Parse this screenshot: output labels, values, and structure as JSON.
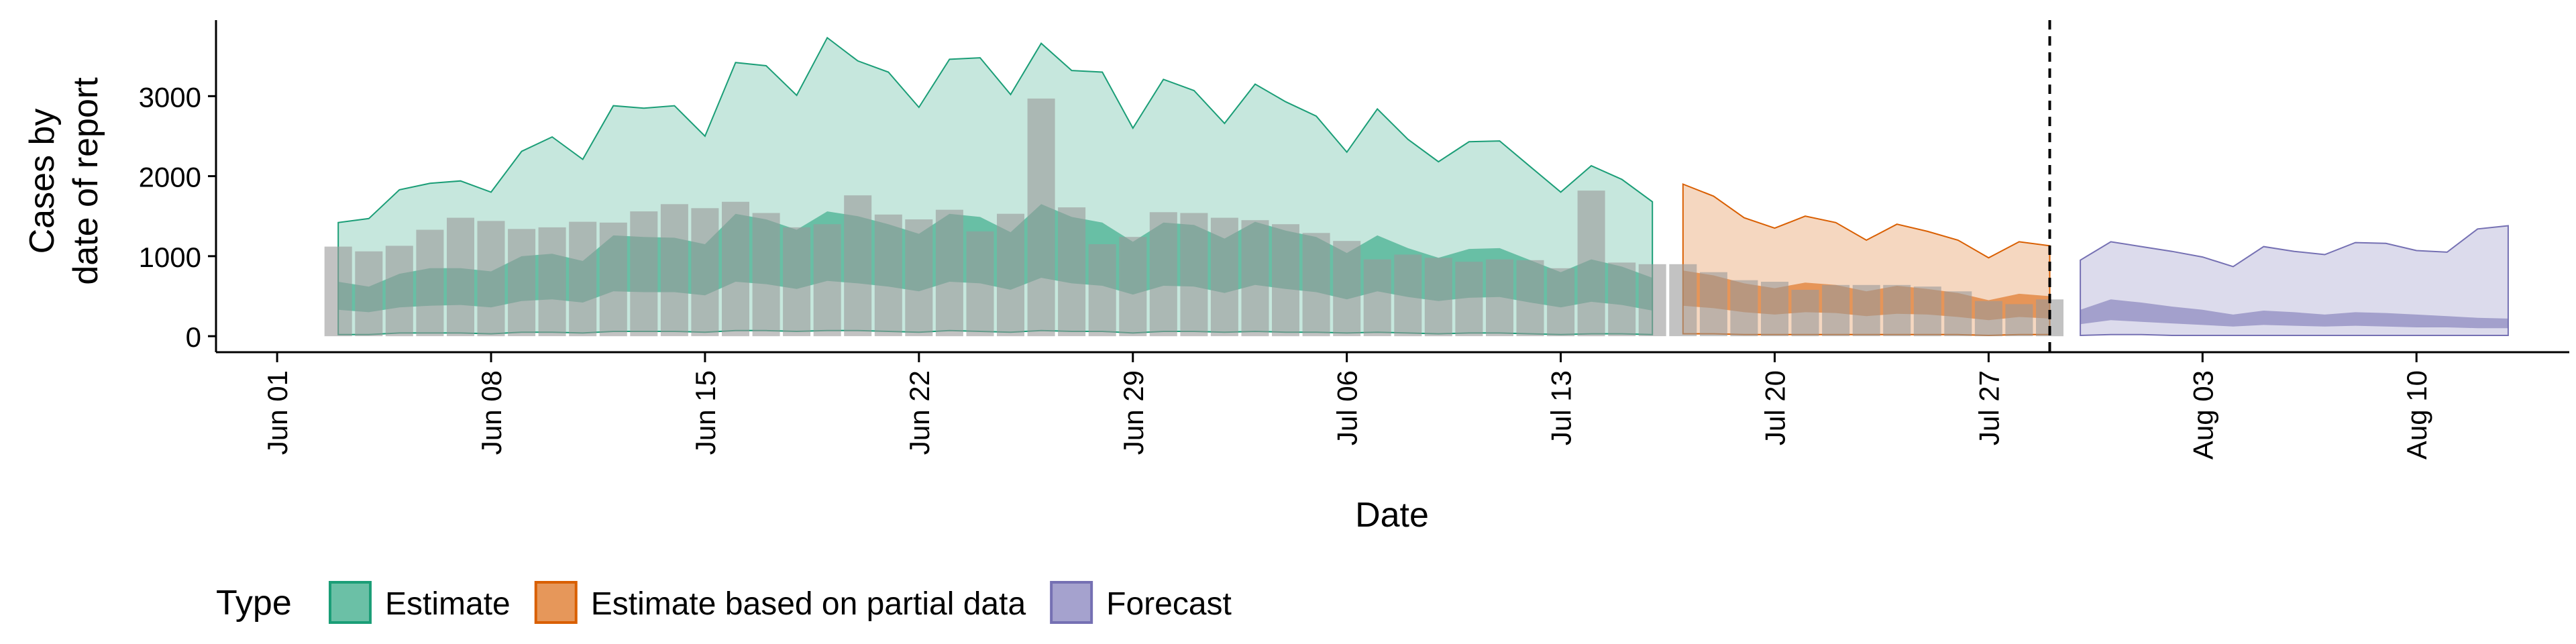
{
  "chart_data": {
    "type": "area",
    "title": "",
    "xlabel": "Date",
    "ylabel": [
      "Cases by",
      "date of report"
    ],
    "y_ticks": [
      0,
      1000,
      2000,
      3000
    ],
    "ylim": [
      -200,
      3950
    ],
    "xlim": [
      "2020-05-30",
      "2020-08-15"
    ],
    "x_ticks": [
      {
        "date": "2020-06-01",
        "label": "Jun 01"
      },
      {
        "date": "2020-06-08",
        "label": "Jun 08"
      },
      {
        "date": "2020-06-15",
        "label": "Jun 15"
      },
      {
        "date": "2020-06-22",
        "label": "Jun 22"
      },
      {
        "date": "2020-06-29",
        "label": "Jun 29"
      },
      {
        "date": "2020-07-06",
        "label": "Jul 06"
      },
      {
        "date": "2020-07-13",
        "label": "Jul 13"
      },
      {
        "date": "2020-07-20",
        "label": "Jul 20"
      },
      {
        "date": "2020-07-27",
        "label": "Jul 27"
      },
      {
        "date": "2020-08-03",
        "label": "Aug 03"
      },
      {
        "date": "2020-08-10",
        "label": "Aug 10"
      }
    ],
    "vline_date": "2020-07-29",
    "legend": {
      "title": "Type",
      "position": "bottom"
    },
    "bars": {
      "start_date": "2020-06-03",
      "values": [
        1120,
        1060,
        1130,
        1330,
        1480,
        1440,
        1340,
        1360,
        1430,
        1420,
        1560,
        1650,
        1600,
        1680,
        1540,
        1360,
        1400,
        1760,
        1520,
        1460,
        1580,
        1310,
        1530,
        2970,
        1610,
        1150,
        1240,
        1550,
        1540,
        1480,
        1450,
        1400,
        1290,
        1190,
        960,
        1020,
        980,
        930,
        960,
        950,
        850,
        1820,
        920,
        900,
        900,
        800,
        700,
        680,
        580,
        640,
        640,
        640,
        620,
        560,
        440,
        400,
        460
      ],
      "color": "#999999"
    },
    "series": [
      {
        "name": "Estimate",
        "color": "#1B9E77",
        "start_date": "2020-06-03",
        "outer_upper": [
          1420,
          1470,
          1830,
          1910,
          1940,
          1800,
          2310,
          2490,
          2210,
          2880,
          2850,
          2880,
          2500,
          3420,
          3380,
          3010,
          3730,
          3440,
          3300,
          2860,
          3460,
          3480,
          3020,
          3660,
          3320,
          3300,
          2600,
          3210,
          3070,
          2660,
          3150,
          2930,
          2750,
          2300,
          2840,
          2460,
          2180,
          2430,
          2440,
          2120,
          1800,
          2130,
          1960,
          1680
        ],
        "inner_upper": [
          680,
          620,
          780,
          850,
          850,
          810,
          1000,
          1030,
          940,
          1260,
          1240,
          1230,
          1150,
          1530,
          1460,
          1330,
          1560,
          1500,
          1400,
          1280,
          1530,
          1490,
          1300,
          1650,
          1490,
          1420,
          1180,
          1420,
          1390,
          1220,
          1430,
          1320,
          1240,
          1040,
          1260,
          1100,
          980,
          1090,
          1100,
          950,
          800,
          960,
          870,
          730
        ],
        "inner_lower": [
          330,
          300,
          360,
          380,
          390,
          360,
          440,
          460,
          420,
          560,
          550,
          550,
          510,
          680,
          650,
          590,
          690,
          660,
          620,
          560,
          680,
          660,
          580,
          730,
          660,
          630,
          520,
          630,
          620,
          540,
          640,
          590,
          550,
          460,
          560,
          490,
          440,
          480,
          490,
          420,
          360,
          430,
          390,
          320
        ],
        "outer_lower": [
          20,
          20,
          40,
          40,
          40,
          30,
          50,
          50,
          40,
          60,
          60,
          60,
          50,
          70,
          70,
          60,
          70,
          70,
          60,
          50,
          70,
          60,
          50,
          70,
          60,
          60,
          40,
          60,
          60,
          50,
          60,
          50,
          50,
          40,
          50,
          40,
          30,
          40,
          40,
          30,
          20,
          30,
          30,
          20
        ]
      },
      {
        "name": "Estimate based on partial data",
        "color": "#D95F02",
        "start_date": "2020-07-17",
        "outer_upper": [
          1900,
          1750,
          1480,
          1350,
          1500,
          1420,
          1200,
          1400,
          1310,
          1200,
          980,
          1180,
          1130
        ],
        "inner_upper": [
          820,
          760,
          660,
          600,
          670,
          640,
          560,
          630,
          590,
          540,
          450,
          530,
          500
        ],
        "inner_lower": [
          380,
          350,
          300,
          270,
          300,
          290,
          250,
          280,
          270,
          240,
          200,
          240,
          220
        ],
        "outer_lower": [
          30,
          30,
          20,
          20,
          20,
          20,
          20,
          20,
          20,
          20,
          10,
          20,
          20
        ]
      },
      {
        "name": "Forecast",
        "color": "#7570B3",
        "start_date": "2020-07-30",
        "outer_upper": [
          950,
          1180,
          1120,
          1060,
          990,
          870,
          1120,
          1060,
          1020,
          1170,
          1160,
          1070,
          1050,
          1340,
          1380
        ],
        "inner_upper": [
          330,
          460,
          420,
          370,
          330,
          270,
          320,
          300,
          270,
          300,
          290,
          270,
          250,
          230,
          220
        ],
        "inner_lower": [
          150,
          200,
          180,
          160,
          140,
          120,
          140,
          130,
          120,
          130,
          120,
          110,
          110,
          100,
          100
        ],
        "outer_lower": [
          10,
          20,
          20,
          10,
          10,
          10,
          10,
          10,
          10,
          10,
          10,
          10,
          10,
          10,
          10
        ]
      }
    ]
  }
}
